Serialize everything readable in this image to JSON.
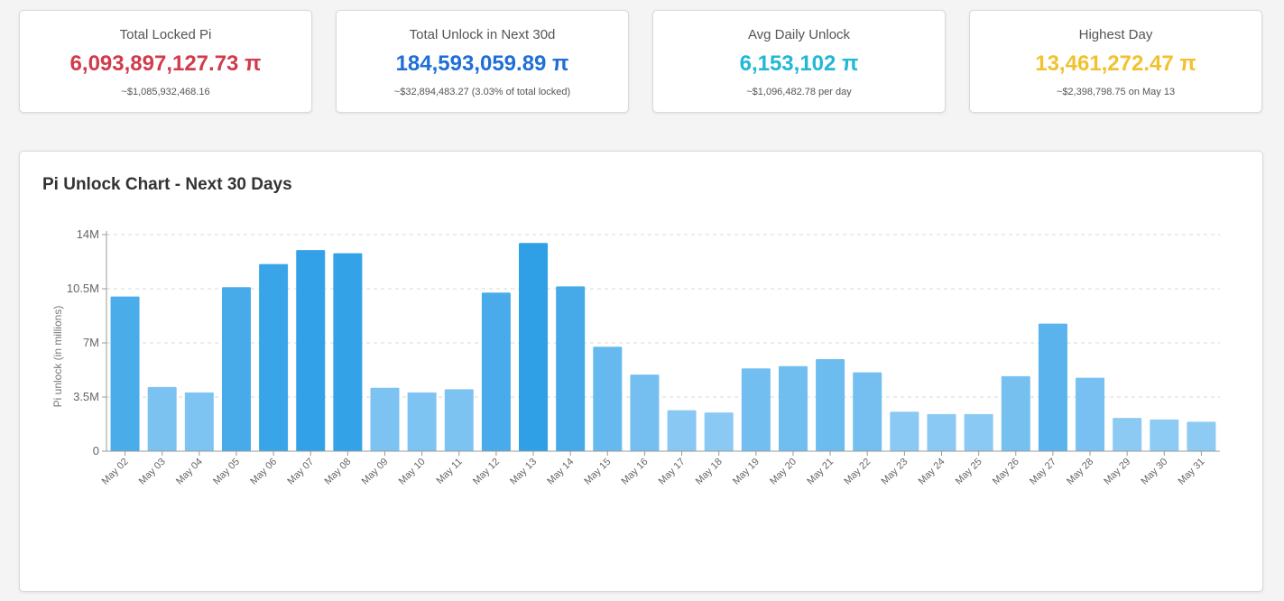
{
  "cards": [
    {
      "title": "Total Locked Pi",
      "value": "6,093,897,127.73 π",
      "sub": "~$1,085,932,468.16",
      "color": "#d13b4b"
    },
    {
      "title": "Total Unlock in Next 30d",
      "value": "184,593,059.89 π",
      "sub": "~$32,894,483.27 (3.03% of total locked)",
      "color": "#1f6fd6"
    },
    {
      "title": "Avg Daily Unlock",
      "value": "6,153,102 π",
      "sub": "~$1,096,482.78 per day",
      "color": "#1fb8d6"
    },
    {
      "title": "Highest Day",
      "value": "13,461,272.47 π",
      "sub": "~$2,398,798.75 on May 13",
      "color": "#f2c12e"
    }
  ],
  "chart": {
    "title": "Pi Unlock Chart - Next 30 Days"
  },
  "chart_data": {
    "type": "bar",
    "title": "Pi Unlock Chart - Next 30 Days",
    "ylabel": "Pi unlock (in millions)",
    "xlabel": "",
    "ylim": [
      0,
      14000000
    ],
    "yticks": [
      {
        "value": 0,
        "label": "0"
      },
      {
        "value": 3500000,
        "label": "3.5M"
      },
      {
        "value": 7000000,
        "label": "7M"
      },
      {
        "value": 10500000,
        "label": "10.5M"
      },
      {
        "value": 14000000,
        "label": "14M"
      }
    ],
    "grid": true,
    "categories": [
      "May 02",
      "May 03",
      "May 04",
      "May 05",
      "May 06",
      "May 07",
      "May 08",
      "May 09",
      "May 10",
      "May 11",
      "May 12",
      "May 13",
      "May 14",
      "May 15",
      "May 16",
      "May 17",
      "May 18",
      "May 19",
      "May 20",
      "May 21",
      "May 22",
      "May 23",
      "May 24",
      "May 25",
      "May 26",
      "May 27",
      "May 28",
      "May 29",
      "May 30",
      "May 31"
    ],
    "values": [
      10000000,
      4150000,
      3800000,
      10600000,
      12100000,
      13000000,
      12800000,
      4100000,
      3800000,
      4000000,
      10250000,
      13460000,
      10650000,
      6750000,
      4950000,
      2650000,
      2500000,
      5350000,
      5500000,
      5950000,
      5100000,
      2550000,
      2400000,
      2400000,
      4850000,
      8250000,
      4750000,
      2150000,
      2050000,
      1900000
    ],
    "bar_colors": {
      "high": "#2f9fe6",
      "low": "#8ecbf4"
    }
  }
}
